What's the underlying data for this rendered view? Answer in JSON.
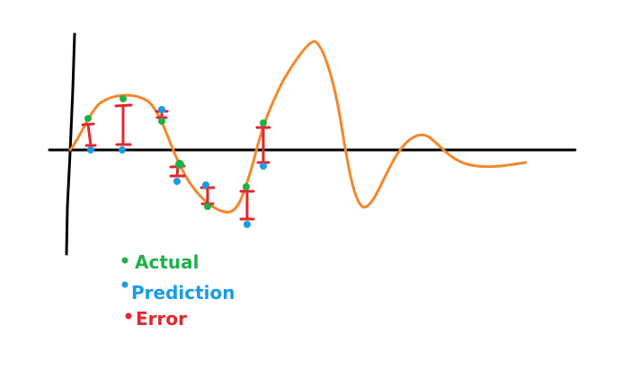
{
  "colors": {
    "axis": "#000000",
    "curve": "#f5862a",
    "actual": "#1fb04a",
    "prediction": "#1a9be8",
    "error": "#e4262d"
  },
  "legend": {
    "actual": "Actual",
    "prediction": "Prediction",
    "error": "Error"
  }
}
